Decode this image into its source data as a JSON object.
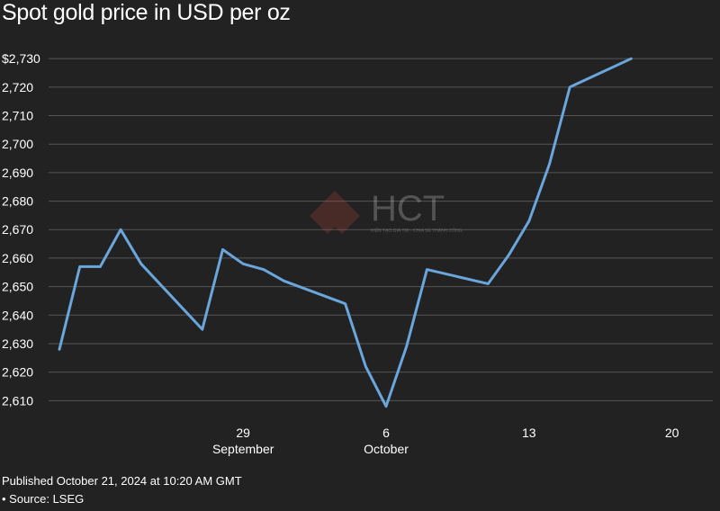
{
  "header": {
    "title": "Spot gold price in USD per oz"
  },
  "footer": {
    "published": "Published October 21, 2024 at 10:20 AM GMT",
    "source": "• Source: LSEG"
  },
  "watermark": {
    "text": "HCT",
    "tagline": "KIẾN TẠO GIÁ TRỊ - CHIA SẺ THÀNH CÔNG"
  },
  "colors": {
    "background": "#222222",
    "line": "#6aa6dc",
    "grid": "#555555",
    "text": "#ffffff"
  },
  "chart_data": {
    "type": "line",
    "title": "Spot gold price in USD per oz",
    "xlabel": "",
    "ylabel": "",
    "ylim": [
      2606,
      2731
    ],
    "yticks": [
      2610,
      2620,
      2630,
      2640,
      2650,
      2660,
      2670,
      2680,
      2690,
      2700,
      2710,
      2720,
      2730
    ],
    "ytick_labels": [
      "2,610",
      "2,620",
      "2,630",
      "2,640",
      "2,650",
      "2,660",
      "2,670",
      "2,680",
      "2,690",
      "2,700",
      "2,710",
      "2,720",
      "$2,730"
    ],
    "xlim": [
      "2024-09-20",
      "2024-10-22"
    ],
    "xticks": [
      {
        "date": "2024-09-29",
        "label": "29",
        "month": "September"
      },
      {
        "date": "2024-10-06",
        "label": "6",
        "month": "October"
      },
      {
        "date": "2024-10-13",
        "label": "13",
        "month": ""
      },
      {
        "date": "2024-10-20",
        "label": "20",
        "month": ""
      }
    ],
    "grid": true,
    "series": [
      {
        "values": [
          {
            "x": "2024-09-20",
            "y": 2628
          },
          {
            "x": "2024-09-21",
            "y": 2657
          },
          {
            "x": "2024-09-22",
            "y": 2657
          },
          {
            "x": "2024-09-23",
            "y": 2670
          },
          {
            "x": "2024-09-24",
            "y": 2658
          },
          {
            "x": "2024-09-27",
            "y": 2635
          },
          {
            "x": "2024-09-28",
            "y": 2663
          },
          {
            "x": "2024-09-29",
            "y": 2658
          },
          {
            "x": "2024-09-30",
            "y": 2656
          },
          {
            "x": "2024-10-01",
            "y": 2652
          },
          {
            "x": "2024-10-04",
            "y": 2644
          },
          {
            "x": "2024-10-05",
            "y": 2622
          },
          {
            "x": "2024-10-06",
            "y": 2608
          },
          {
            "x": "2024-10-07",
            "y": 2629
          },
          {
            "x": "2024-10-08",
            "y": 2656
          },
          {
            "x": "2024-10-11",
            "y": 2651
          },
          {
            "x": "2024-10-12",
            "y": 2661
          },
          {
            "x": "2024-10-13",
            "y": 2673
          },
          {
            "x": "2024-10-14",
            "y": 2693
          },
          {
            "x": "2024-10-15",
            "y": 2720
          },
          {
            "x": "2024-10-18",
            "y": 2730
          }
        ]
      }
    ]
  }
}
